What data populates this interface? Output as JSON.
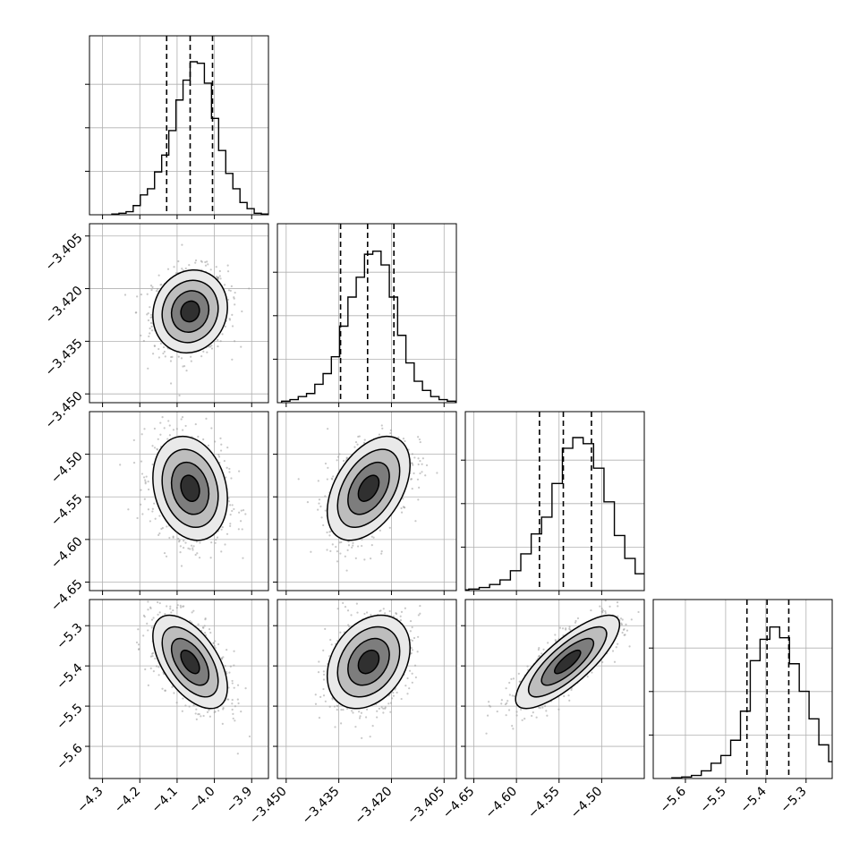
{
  "chart_data": {
    "type": "corner",
    "parameters": [
      {
        "mean": -4.065,
        "sd": 0.05,
        "range": [
          -4.335,
          -3.855
        ],
        "ticks": [
          -4.3,
          -4.2,
          -4.1,
          -4.0,
          -3.9
        ],
        "tick_labels": [
          "−4.3",
          "−4.2",
          "−4.1",
          "−4.0",
          "−3.9"
        ],
        "quantiles": [
          -4.128,
          -4.065,
          -4.005
        ],
        "hist": [
          0.005,
          0.01,
          0.02,
          0.06,
          0.13,
          0.17,
          0.28,
          0.39,
          0.55,
          0.75,
          0.88,
          1.0,
          0.99,
          0.86,
          0.63,
          0.42,
          0.27,
          0.17,
          0.08,
          0.04,
          0.01,
          0.005
        ]
      },
      {
        "mean": -3.4265,
        "sd": 0.0059,
        "range": [
          -3.4525,
          -3.4015
        ],
        "ticks": [
          -3.45,
          -3.435,
          -3.42,
          -3.405
        ],
        "tick_labels": [
          "−3.450",
          "−3.435",
          "−3.420",
          "−3.405"
        ],
        "quantiles": [
          -3.4345,
          -3.4268,
          -3.4193
        ],
        "hist": [
          0.01,
          0.02,
          0.04,
          0.06,
          0.12,
          0.19,
          0.3,
          0.5,
          0.69,
          0.82,
          0.97,
          0.99,
          0.9,
          0.69,
          0.44,
          0.26,
          0.14,
          0.08,
          0.04,
          0.02,
          0.01
        ]
      },
      {
        "mean": -4.54,
        "sd": 0.0305,
        "range": [
          -4.66,
          -4.45
        ],
        "ticks": [
          -4.65,
          -4.6,
          -4.55,
          -4.5
        ],
        "tick_labels": [
          "−4.65",
          "−4.60",
          "−4.55",
          "−4.50"
        ],
        "quantiles": [
          -4.573,
          -4.545,
          -4.512
        ],
        "hist": [
          0.005,
          0.01,
          0.02,
          0.04,
          0.07,
          0.13,
          0.24,
          0.37,
          0.48,
          0.7,
          0.93,
          1.0,
          0.96,
          0.8,
          0.58,
          0.36,
          0.21,
          0.11,
          0.05,
          0.02,
          0.01
        ]
      },
      {
        "mean": -5.39,
        "sd": 0.058,
        "range": [
          -5.68,
          -5.235
        ],
        "ticks": [
          -5.6,
          -5.5,
          -5.4,
          -5.3
        ],
        "tick_labels": [
          "−5.6",
          "−5.5",
          "−5.4",
          "−5.3"
        ],
        "quantiles": [
          -5.447,
          -5.397,
          -5.343
        ],
        "hist": [
          0.005,
          0.01,
          0.02,
          0.05,
          0.1,
          0.15,
          0.25,
          0.44,
          0.77,
          0.91,
          0.99,
          0.92,
          0.75,
          0.57,
          0.39,
          0.22,
          0.11,
          0.06,
          0.02,
          0.01
        ]
      }
    ],
    "correlations": [
      [
        1,
        0.1,
        -0.2,
        -0.55
      ],
      [
        0.1,
        1,
        0.45,
        0.3
      ],
      [
        -0.2,
        0.45,
        1,
        0.8
      ],
      [
        -0.55,
        0.3,
        0.8,
        1
      ]
    ],
    "contour_levels_sigma": [
      0.5,
      1.0,
      1.5,
      2.0
    ],
    "grid": true
  }
}
